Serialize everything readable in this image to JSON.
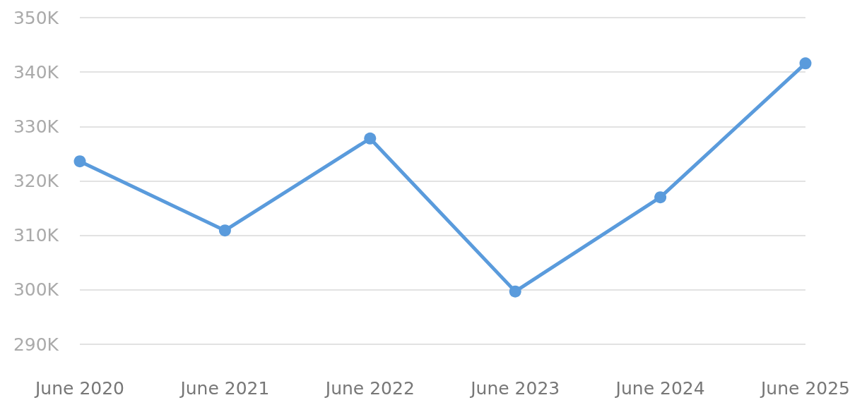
{
  "chart_data": {
    "type": "line",
    "categories": [
      "June 2020",
      "June 2021",
      "June 2022",
      "June 2023",
      "June 2024",
      "June 2025"
    ],
    "series": [
      {
        "color": "#5a9bdc",
        "values": [
          323600,
          310900,
          327800,
          299700,
          317000,
          341600
        ]
      }
    ],
    "ylim": [
      290000,
      350000
    ],
    "yticks": [
      {
        "value": 290000,
        "label": "290K"
      },
      {
        "value": 300000,
        "label": "300K"
      },
      {
        "value": 310000,
        "label": "310K"
      },
      {
        "value": 320000,
        "label": "320K"
      },
      {
        "value": 330000,
        "label": "330K"
      },
      {
        "value": 340000,
        "label": "340K"
      },
      {
        "value": 350000,
        "label": "350K"
      }
    ],
    "grid": "y",
    "marker": "circle",
    "line_style": "solid"
  }
}
